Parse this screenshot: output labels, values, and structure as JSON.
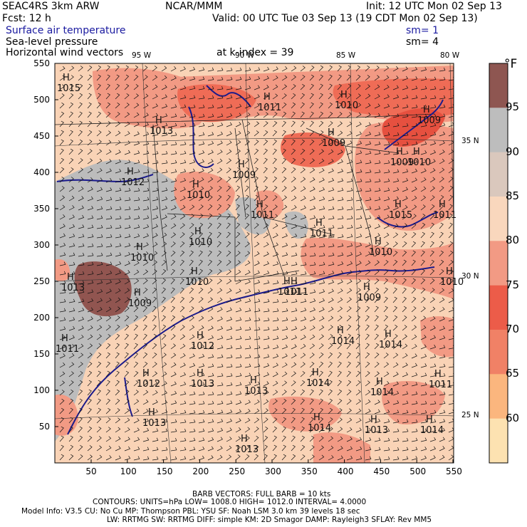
{
  "header": {
    "model": "SEAC4RS  3km ARW",
    "org": "NCAR/MMM",
    "init": "Init: 12 UTC Mon 02 Sep 13",
    "fcst": "Fcst:   12 h",
    "valid": "Valid: 00 UTC Tue 03 Sep 13 (19 CDT Mon 02 Sep 13)",
    "field1": "Surface air temperature",
    "field2": "Sea-level pressure",
    "field3": "Horizontal wind vectors",
    "sm1": "sm= 1",
    "sm2": "sm= 4",
    "kindex": "at k-index =   39"
  },
  "map": {
    "lon_labels": [
      "95 W",
      "90 W",
      "85 W",
      "80 W"
    ],
    "lat_labels": [
      "35 N",
      "30 N",
      "25 N"
    ],
    "x_ticks": [
      "50",
      "100",
      "150",
      "200",
      "250",
      "300",
      "350",
      "400",
      "450",
      "500",
      "550"
    ],
    "y_ticks": [
      "550",
      "500",
      "450",
      "400",
      "350",
      "300",
      "250",
      "200",
      "150",
      "100",
      "50"
    ],
    "pressure_labels": [
      "1015",
      "1011",
      "1010",
      "1013",
      "1009",
      "1010",
      "1009",
      "1012",
      "1010",
      "1009",
      "1011",
      "1011",
      "1015",
      "1011",
      "1010",
      "1010",
      "1010",
      "1011",
      "1013",
      "1009",
      "1012",
      "1010",
      "1014",
      "1014",
      "1009",
      "1012",
      "1013",
      "1013",
      "1014",
      "1014",
      "1011",
      "1014",
      "1013",
      "1013",
      "1014",
      "1013",
      "1011",
      "1011",
      "1010",
      "1009"
    ],
    "colors": {
      "land_fill": "#f9d3b6",
      "warm": "#f29a84",
      "hot": "#ef6c56",
      "hottest": "#e6503f",
      "cool": "#bcbcbc",
      "very_hot": "#915550",
      "coast": "#1b1b8c",
      "grid": "#333333"
    }
  },
  "colorbar": {
    "unit": "°F",
    "labels": [
      "95",
      "90",
      "85",
      "80",
      "75",
      "70",
      "65",
      "60"
    ],
    "colors": [
      "#8e5651",
      "#bdbdbd",
      "#dac8bd",
      "#f9d7bd",
      "#f29a84",
      "#ec5c49",
      "#f08166",
      "#fbb67e",
      "#fde2b1"
    ]
  },
  "footer": {
    "barb": "BARB VECTORS:  FULL BARB = 10 kts",
    "contours": "CONTOURS:  UNITS=hPa  LOW=   1008.0        HIGH=  1012.0       INTERVAL=    4.0000",
    "model_info": "Model Info: V3.5        CU: No Cu      MP: Thompson      PBL: YSU        SF: Noah LSM      3.0 km    39 levels    18 sec",
    "model_info2": "LW: RRTMG     SW: RRTMG   DIFF: simple KM: 2D Smagor DAMP: Rayleigh3    SFLAY: Rev MM5"
  }
}
